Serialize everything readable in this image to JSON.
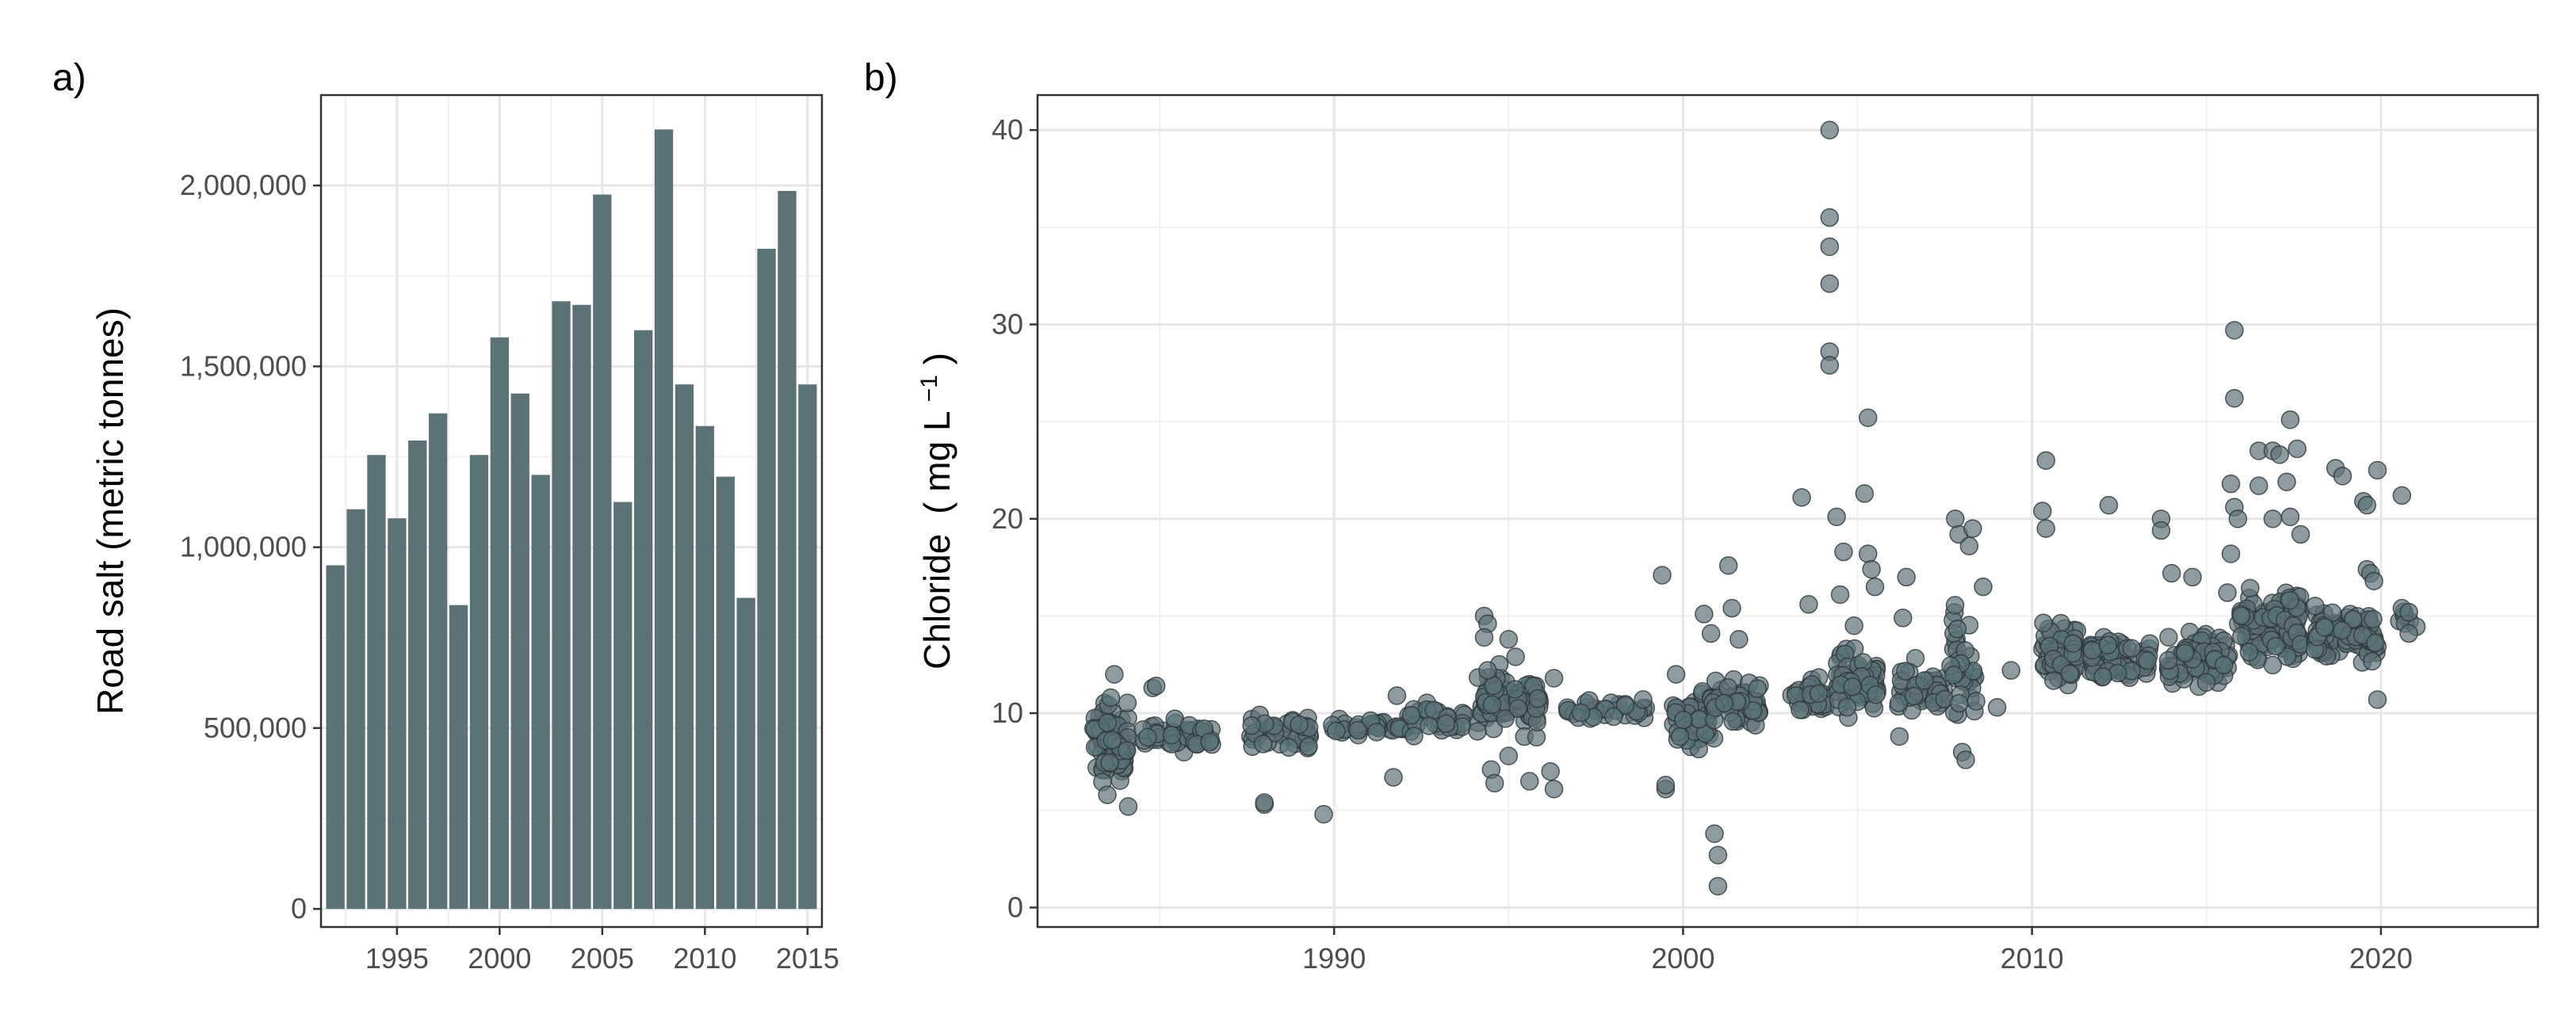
{
  "panels": [
    {
      "label": "a)"
    },
    {
      "label": "b)"
    }
  ],
  "colors": {
    "bar_fill": "#5b7279",
    "point_fill": "#5b7279",
    "point_stroke": "#2a3538"
  },
  "chart_data": [
    {
      "type": "bar",
      "title": "",
      "xlabel": "",
      "ylabel": "Road salt (metric tonnes)",
      "xlim": [
        1991.3,
        2015.7
      ],
      "ylim": [
        -50000,
        2250000
      ],
      "xticks": [
        1995,
        2000,
        2005,
        2010,
        2015
      ],
      "yticks": [
        0,
        500000,
        1000000,
        1500000,
        2000000
      ],
      "yticklabels": [
        "0",
        "500,000",
        "1,000,000",
        "1,500,000",
        "2,000,000"
      ],
      "grid": true,
      "x": [
        1992,
        1993,
        1994,
        1995,
        1996,
        1997,
        1998,
        1999,
        2000,
        2001,
        2002,
        2003,
        2004,
        2005,
        2006,
        2007,
        2008,
        2009,
        2010,
        2011,
        2012,
        2013,
        2014,
        2015
      ],
      "values": [
        950000,
        1105000,
        1255000,
        1080000,
        1295000,
        1370000,
        840000,
        1255000,
        1580000,
        1425000,
        1200000,
        1680000,
        1670000,
        1975000,
        1125000,
        1600000,
        2155000,
        1450000,
        1335000,
        1195000,
        860000,
        1825000,
        1985000,
        1450000
      ]
    },
    {
      "type": "scatter",
      "title": "",
      "xlabel": "",
      "ylabel": "Chloride (mg L−1)",
      "ylabel_parts": {
        "main": "Chloride",
        "open": "(",
        "unit": "mg L",
        "exp": "−1",
        "close": ")"
      },
      "xlim": [
        1981.5,
        2024.5
      ],
      "ylim": [
        -1.0,
        41.8
      ],
      "xticks": [
        1990,
        2000,
        2010,
        2020
      ],
      "yticks": [
        0,
        10,
        20,
        30,
        40
      ],
      "grid": true,
      "clusters": [
        {
          "x": 1983.6,
          "xspread": 0.5,
          "ycenter": 8.5,
          "yspread": 1.6,
          "n": 90
        },
        {
          "x": 1985.5,
          "xspread": 1.0,
          "ycenter": 8.8,
          "yspread": 0.7,
          "n": 45
        },
        {
          "x": 1988.5,
          "xspread": 0.9,
          "ycenter": 9.1,
          "yspread": 0.7,
          "n": 40
        },
        {
          "x": 1991.0,
          "xspread": 1.2,
          "ycenter": 9.3,
          "yspread": 0.5,
          "n": 35
        },
        {
          "x": 1993.0,
          "xspread": 0.8,
          "ycenter": 9.7,
          "yspread": 0.7,
          "n": 30
        },
        {
          "x": 1995.0,
          "xspread": 0.9,
          "ycenter": 10.6,
          "yspread": 1.3,
          "n": 90
        },
        {
          "x": 1997.8,
          "xspread": 1.2,
          "ycenter": 10.2,
          "yspread": 0.5,
          "n": 30
        },
        {
          "x": 2000.3,
          "xspread": 0.6,
          "ycenter": 9.7,
          "yspread": 1.3,
          "n": 55
        },
        {
          "x": 2001.5,
          "xspread": 0.7,
          "ycenter": 10.5,
          "yspread": 1.0,
          "n": 50
        },
        {
          "x": 2003.6,
          "xspread": 0.5,
          "ycenter": 10.8,
          "yspread": 0.8,
          "n": 35
        },
        {
          "x": 2005.0,
          "xspread": 0.6,
          "ycenter": 11.4,
          "yspread": 1.4,
          "n": 70
        },
        {
          "x": 2006.8,
          "xspread": 0.7,
          "ycenter": 11.3,
          "yspread": 1.1,
          "n": 50
        },
        {
          "x": 2008.0,
          "xspread": 0.4,
          "ycenter": 12.5,
          "yspread": 2.5,
          "n": 35
        },
        {
          "x": 2010.8,
          "xspread": 0.5,
          "ycenter": 13.0,
          "yspread": 1.2,
          "n": 70
        },
        {
          "x": 2012.5,
          "xspread": 0.9,
          "ycenter": 12.8,
          "yspread": 0.9,
          "n": 70
        },
        {
          "x": 2014.8,
          "xspread": 0.9,
          "ycenter": 12.8,
          "yspread": 1.1,
          "n": 80
        },
        {
          "x": 2016.8,
          "xspread": 0.9,
          "ycenter": 14.5,
          "yspread": 1.8,
          "n": 110
        },
        {
          "x": 2019.0,
          "xspread": 0.9,
          "ycenter": 14.0,
          "yspread": 1.2,
          "n": 90
        },
        {
          "x": 2020.8,
          "xspread": 0.3,
          "ycenter": 14.8,
          "yspread": 0.6,
          "n": 6
        }
      ],
      "points": [
        [
          1983.7,
          12.0
        ],
        [
          1983.6,
          10.8
        ],
        [
          1983.5,
          5.8
        ],
        [
          1984.1,
          5.2
        ],
        [
          1984.8,
          11.3
        ],
        [
          1984.9,
          11.4
        ],
        [
          1988.0,
          5.3
        ],
        [
          1988.0,
          5.4
        ],
        [
          1989.7,
          4.8
        ],
        [
          1991.7,
          6.7
        ],
        [
          1991.8,
          10.9
        ],
        [
          1994.3,
          15.0
        ],
        [
          1994.4,
          14.6
        ],
        [
          1994.3,
          13.9
        ],
        [
          1994.4,
          12.2
        ],
        [
          1994.5,
          7.1
        ],
        [
          1994.6,
          6.4
        ],
        [
          1995.0,
          13.8
        ],
        [
          1995.2,
          12.9
        ],
        [
          1995.0,
          7.8
        ],
        [
          1995.6,
          6.5
        ],
        [
          1996.2,
          7.0
        ],
        [
          1996.3,
          6.1
        ],
        [
          1996.3,
          11.8
        ],
        [
          1999.4,
          17.1
        ],
        [
          1999.5,
          6.1
        ],
        [
          1999.5,
          6.3
        ],
        [
          1999.8,
          12.0
        ],
        [
          2000.6,
          15.1
        ],
        [
          2000.8,
          14.1
        ],
        [
          2000.9,
          3.8
        ],
        [
          2001.0,
          2.7
        ],
        [
          2001.0,
          1.1
        ],
        [
          2001.3,
          17.6
        ],
        [
          2001.4,
          15.4
        ],
        [
          2001.6,
          13.8
        ],
        [
          2003.4,
          21.1
        ],
        [
          2003.6,
          15.6
        ],
        [
          2004.2,
          40.0
        ],
        [
          2004.2,
          35.5
        ],
        [
          2004.2,
          34.0
        ],
        [
          2004.2,
          32.1
        ],
        [
          2004.2,
          28.6
        ],
        [
          2004.2,
          27.9
        ],
        [
          2004.4,
          20.1
        ],
        [
          2004.6,
          18.3
        ],
        [
          2004.5,
          16.1
        ],
        [
          2004.9,
          14.5
        ],
        [
          2005.3,
          25.2
        ],
        [
          2005.2,
          21.3
        ],
        [
          2005.3,
          18.2
        ],
        [
          2005.4,
          17.4
        ],
        [
          2005.5,
          16.5
        ],
        [
          2006.4,
          17.0
        ],
        [
          2006.3,
          14.9
        ],
        [
          2006.2,
          8.8
        ],
        [
          2007.8,
          20.0
        ],
        [
          2007.9,
          19.2
        ],
        [
          2008.3,
          19.5
        ],
        [
          2008.2,
          18.6
        ],
        [
          2008.6,
          16.5
        ],
        [
          2008.0,
          8.0
        ],
        [
          2008.1,
          7.6
        ],
        [
          2009.0,
          10.3
        ],
        [
          2009.4,
          12.2
        ],
        [
          2010.4,
          23.0
        ],
        [
          2010.3,
          20.4
        ],
        [
          2010.4,
          19.5
        ],
        [
          2012.2,
          20.7
        ],
        [
          2013.7,
          20.0
        ],
        [
          2013.7,
          19.4
        ],
        [
          2014.0,
          17.2
        ],
        [
          2014.6,
          17.0
        ],
        [
          2015.7,
          21.8
        ],
        [
          2015.8,
          20.6
        ],
        [
          2015.9,
          20.0
        ],
        [
          2015.7,
          18.2
        ],
        [
          2015.6,
          16.2
        ],
        [
          2015.8,
          29.7
        ],
        [
          2015.8,
          26.2
        ],
        [
          2016.5,
          23.5
        ],
        [
          2016.9,
          23.5
        ],
        [
          2017.1,
          23.3
        ],
        [
          2017.4,
          25.1
        ],
        [
          2017.6,
          23.6
        ],
        [
          2016.5,
          21.7
        ],
        [
          2017.3,
          21.9
        ],
        [
          2016.9,
          20.0
        ],
        [
          2017.4,
          20.1
        ],
        [
          2017.7,
          19.2
        ],
        [
          2018.7,
          22.6
        ],
        [
          2018.9,
          22.2
        ],
        [
          2019.5,
          20.9
        ],
        [
          2019.6,
          20.7
        ],
        [
          2019.9,
          22.5
        ],
        [
          2020.6,
          21.2
        ],
        [
          2020.6,
          15.4
        ],
        [
          2020.8,
          14.1
        ],
        [
          2020.8,
          15.2
        ],
        [
          2019.9,
          10.7
        ],
        [
          2019.6,
          17.4
        ],
        [
          2019.7,
          17.2
        ],
        [
          2019.8,
          16.8
        ]
      ]
    }
  ]
}
